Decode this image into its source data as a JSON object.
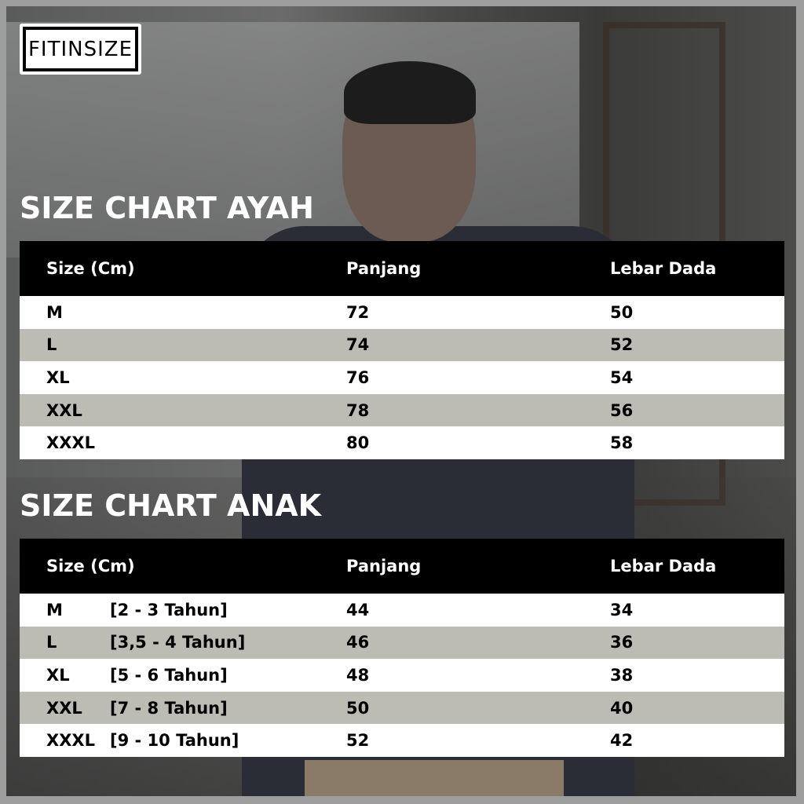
{
  "logo": {
    "text": "FITINSIZE"
  },
  "colors": {
    "header_bg": "#000000",
    "row_light": "#ffffff",
    "row_alt": "#bdbcb4",
    "frame": "#9e9e9e"
  },
  "ayah": {
    "title": "SIZE CHART AYAH",
    "headers": [
      "Size (Cm)",
      "Panjang",
      "Lebar Dada"
    ],
    "rows": [
      {
        "size": "M",
        "panjang": "72",
        "lebar": "50"
      },
      {
        "size": "L",
        "panjang": "74",
        "lebar": "52"
      },
      {
        "size": "XL",
        "panjang": "76",
        "lebar": "54"
      },
      {
        "size": "XXL",
        "panjang": "78",
        "lebar": "56"
      },
      {
        "size": "XXXL",
        "panjang": "80",
        "lebar": "58"
      }
    ]
  },
  "anak": {
    "title": "SIZE CHART ANAK",
    "headers": [
      "Size (Cm)",
      "Panjang",
      "Lebar Dada"
    ],
    "rows": [
      {
        "size": "M",
        "age": "[2 - 3 Tahun]",
        "panjang": "44",
        "lebar": "34"
      },
      {
        "size": "L",
        "age": "[3,5 - 4 Tahun]",
        "panjang": "46",
        "lebar": "36"
      },
      {
        "size": "XL",
        "age": "[5 - 6 Tahun]",
        "panjang": "48",
        "lebar": "38"
      },
      {
        "size": "XXL",
        "age": "[7 - 8 Tahun]",
        "panjang": "50",
        "lebar": "40"
      },
      {
        "size": "XXXL",
        "age": "[9 - 10 Tahun]",
        "panjang": "52",
        "lebar": "42"
      }
    ]
  }
}
